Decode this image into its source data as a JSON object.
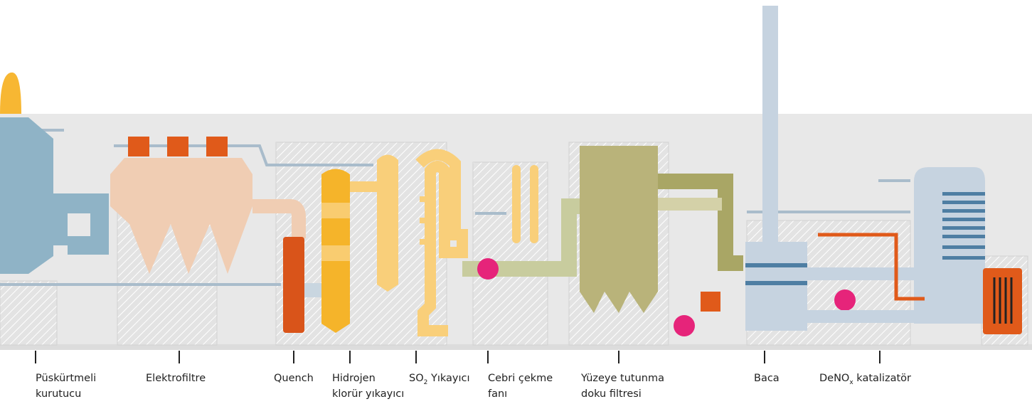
{
  "labels": [
    {
      "lines": [
        "Püskürtmeli",
        "kurutucu"
      ]
    },
    {
      "lines": [
        "Elektrofiltre"
      ]
    },
    {
      "lines": [
        "Quench"
      ]
    },
    {
      "lines": [
        "Hidrojen",
        "klorür yıkayıcı"
      ]
    },
    {
      "parts": [
        "SO",
        "2",
        " Yıkayıcı"
      ]
    },
    {
      "lines": [
        "Cebri çekme",
        "fanı"
      ]
    },
    {
      "lines": [
        "Yüzeye tutunma",
        "doku filtresi"
      ]
    },
    {
      "lines": [
        "Baca"
      ]
    },
    {
      "parts": [
        "DeNO",
        "x",
        " katalizatör"
      ]
    }
  ]
}
